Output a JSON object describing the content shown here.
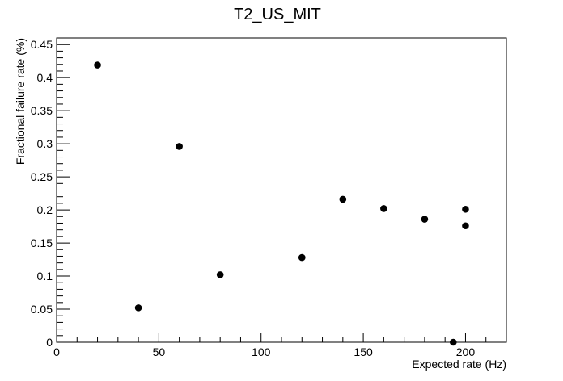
{
  "chart_data": {
    "type": "scatter",
    "title": "T2_US_MIT",
    "xlabel": "Expected rate (Hz)",
    "ylabel": "Fractional failure rate (%)",
    "xlim": [
      0,
      220
    ],
    "ylim": [
      0,
      0.46
    ],
    "x_major_ticks": [
      0,
      50,
      100,
      150,
      200
    ],
    "x_tick_labels": [
      "0",
      "50",
      "100",
      "150",
      "200"
    ],
    "y_major_ticks": [
      0,
      0.05,
      0.1,
      0.15,
      0.2,
      0.25,
      0.3,
      0.35,
      0.4,
      0.45
    ],
    "y_tick_labels": [
      "0",
      "0.05",
      "0.1",
      "0.15",
      "0.2",
      "0.25",
      "0.3",
      "0.35",
      "0.4",
      "0.45"
    ],
    "grid": false,
    "points": [
      {
        "x": 20,
        "y": 0.419
      },
      {
        "x": 40,
        "y": 0.052
      },
      {
        "x": 60,
        "y": 0.296
      },
      {
        "x": 80,
        "y": 0.102
      },
      {
        "x": 120,
        "y": 0.128
      },
      {
        "x": 140,
        "y": 0.216
      },
      {
        "x": 160,
        "y": 0.202
      },
      {
        "x": 180,
        "y": 0.186
      },
      {
        "x": 194,
        "y": 0.0
      },
      {
        "x": 200,
        "y": 0.201
      },
      {
        "x": 200,
        "y": 0.176
      }
    ],
    "marker_color": "#000000"
  }
}
